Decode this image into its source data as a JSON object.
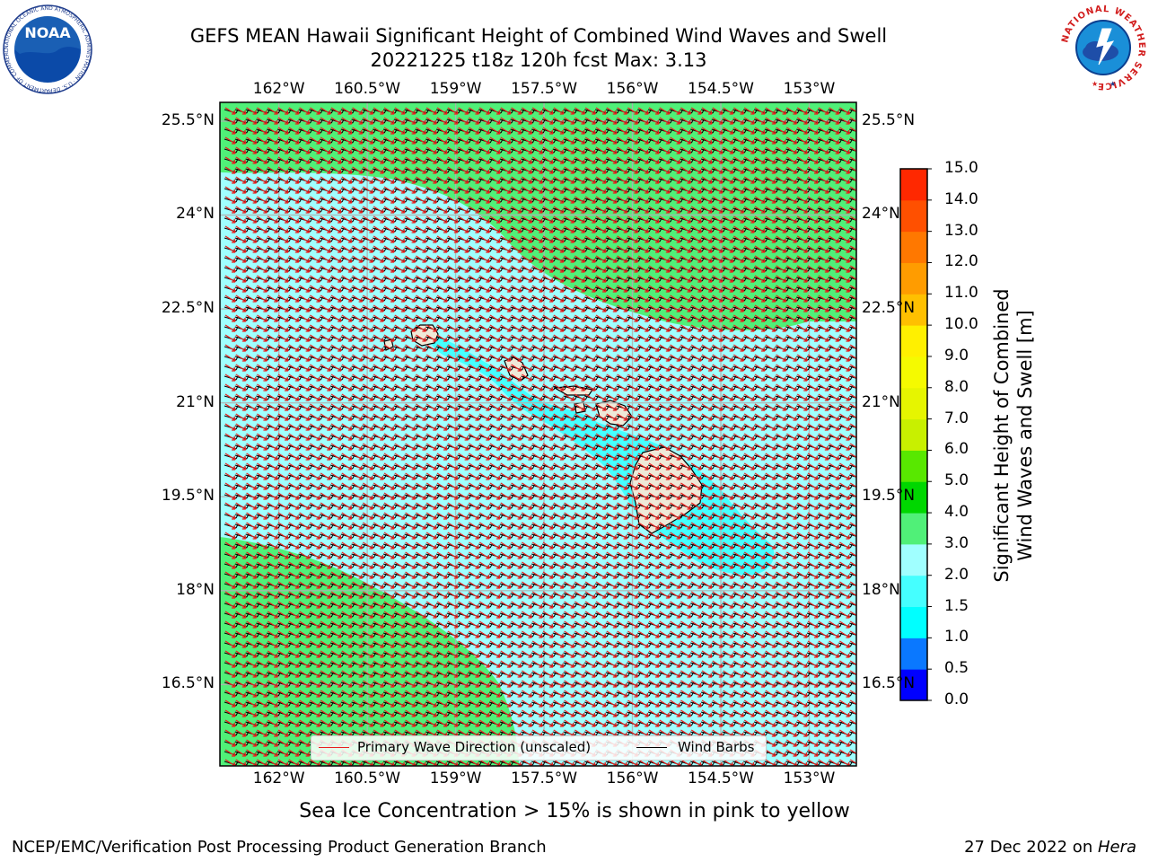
{
  "title": {
    "line1": "GEFS MEAN Hawaii Significant Height of Combined Wind Waves and Swell",
    "line2": "20221225 t18z 120h fcst   Max: 3.13"
  },
  "map": {
    "lon_ticks": [
      "162°W",
      "160.5°W",
      "159°W",
      "157.5°W",
      "156°W",
      "154.5°W",
      "153°W"
    ],
    "lat_ticks": [
      "25.5°N",
      "24°N",
      "22.5°N",
      "21°N",
      "19.5°N",
      "18°N",
      "16.5°N"
    ],
    "lon_values": [
      -162,
      -160.5,
      -159,
      -157.5,
      -156,
      -154.5,
      -153
    ],
    "lat_values": [
      25.5,
      24,
      22.5,
      21,
      19.5,
      18,
      16.5
    ],
    "extent": {
      "lon_min": -163,
      "lon_max": -152.2,
      "lat_min": 15.2,
      "lat_max": 25.8
    },
    "wave_direction_color": "#e8201e",
    "barb_color": "#000000",
    "land_color": "#efe9d8"
  },
  "legend": {
    "wave_label": "Primary Wave Direction (unscaled)",
    "barb_label": "Wind Barbs"
  },
  "colorbar": {
    "title_line1": "Significant Height of Combined",
    "title_line2": "Wind Waves and Swell [m]",
    "labels": [
      "15.0",
      "14.0",
      "13.0",
      "12.0",
      "11.0",
      "10.0",
      "9.0",
      "8.0",
      "7.0",
      "6.0",
      "5.0",
      "4.0",
      "3.0",
      "2.0",
      "1.5",
      "1.0",
      "0.5",
      "0.0"
    ],
    "bins": [
      {
        "range": "0.0-0.5",
        "color": "#0000ff"
      },
      {
        "range": "0.5-1.0",
        "color": "#0a78ff"
      },
      {
        "range": "1.0-1.5",
        "color": "#00ffff"
      },
      {
        "range": "1.5-2.0",
        "color": "#45ffff"
      },
      {
        "range": "2.0-3.0",
        "color": "#a0ffff"
      },
      {
        "range": "3.0-4.0",
        "color": "#50f078"
      },
      {
        "range": "4.0-5.0",
        "color": "#00d700"
      },
      {
        "range": "5.0-6.0",
        "color": "#58e800"
      },
      {
        "range": "6.0-7.0",
        "color": "#c8f000"
      },
      {
        "range": "7.0-8.0",
        "color": "#e6f500"
      },
      {
        "range": "8.0-9.0",
        "color": "#f5fa00"
      },
      {
        "range": "9.0-10.0",
        "color": "#fff000"
      },
      {
        "range": "10.0-11.0",
        "color": "#ffc000"
      },
      {
        "range": "11.0-12.0",
        "color": "#ff9c00"
      },
      {
        "range": "12.0-13.0",
        "color": "#ff7800"
      },
      {
        "range": "13.0-14.0",
        "color": "#ff5000"
      },
      {
        "range": "14.0-15.0",
        "color": "#ff2800"
      },
      {
        "range": "15.0",
        "color": "#ff0000"
      }
    ]
  },
  "footer": {
    "note": "Sea Ice Concentration > 15% is shown in pink to yellow",
    "left": "NCEP/EMC/Verification Post Processing Product Generation Branch",
    "right_prefix": "27 Dec 2022 on ",
    "right_machine": "Hera"
  },
  "logos": {
    "noaa_text": "NOAA",
    "noaa_ring_text": "NATIONAL OCEANIC AND ATMOSPHERIC ADMINISTRATION · U.S. DEPARTMENT OF COMMERCE",
    "nws_ring_text": "NATIONAL WEATHER SERVICE"
  }
}
